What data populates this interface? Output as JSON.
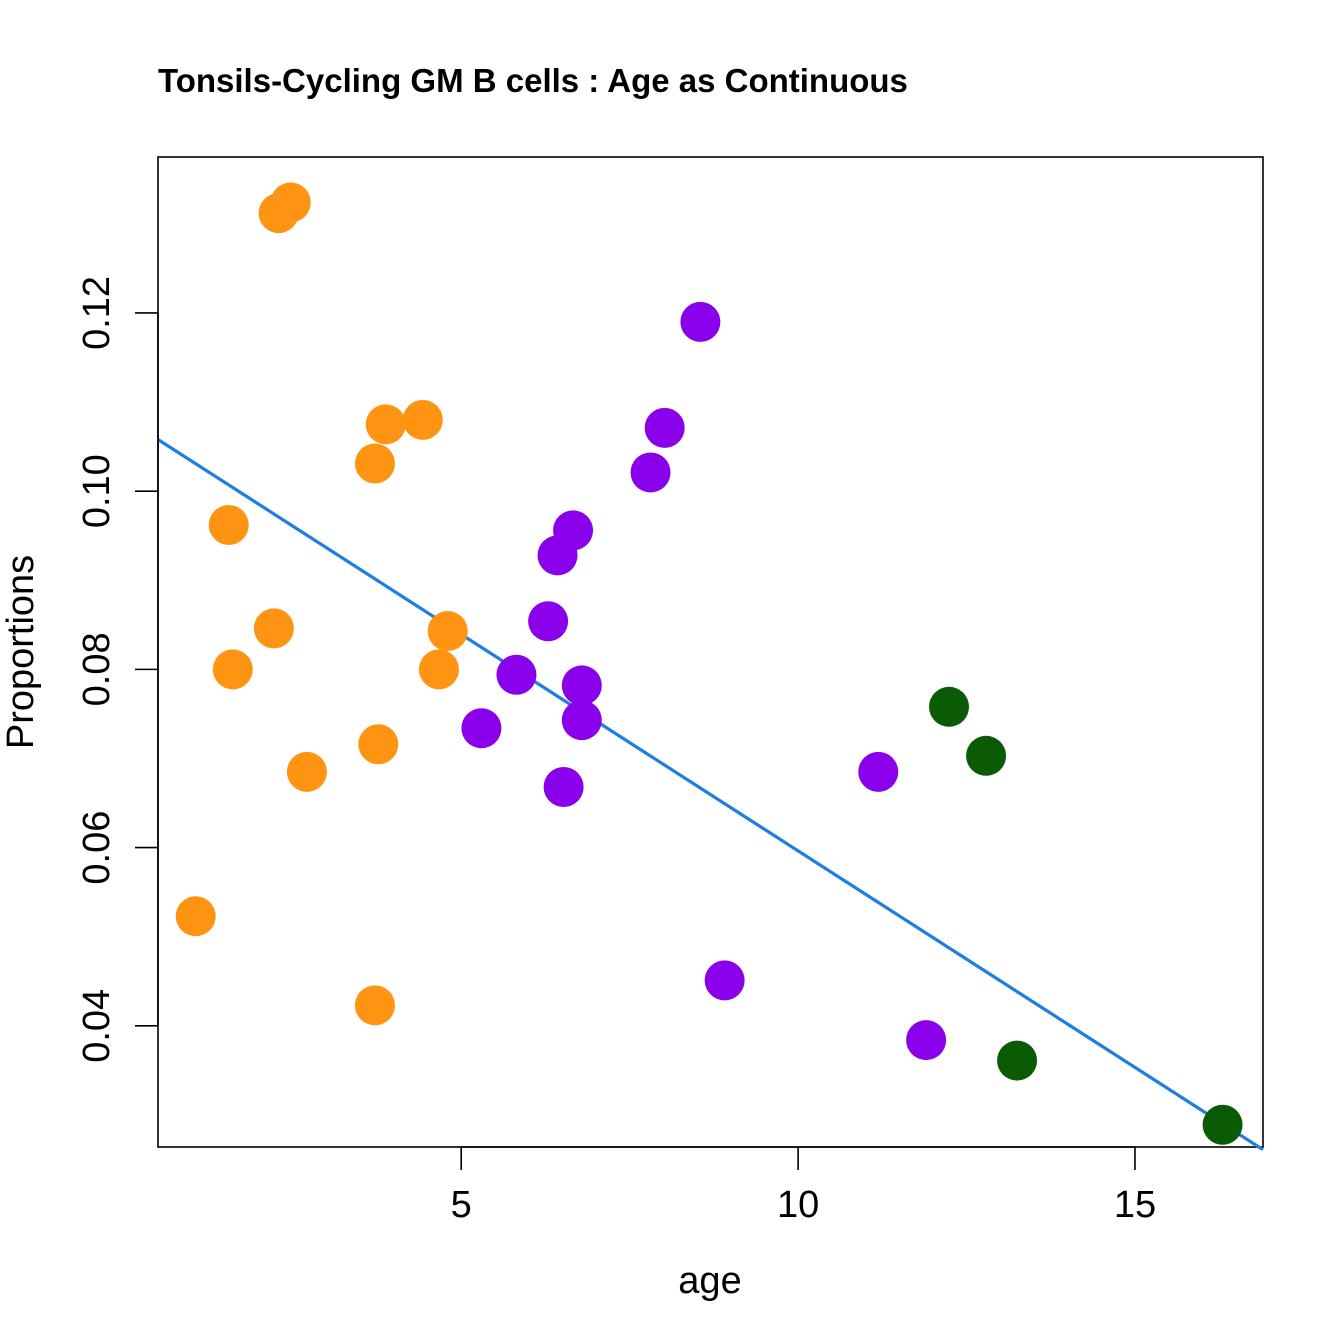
{
  "chart_data": {
    "type": "scatter",
    "title": "Tonsils-Cycling GM B cells : Age as Continuous",
    "xlabel": "age",
    "ylabel": "Proportions",
    "xlim": [
      0.5,
      16.9
    ],
    "ylim": [
      0.0264,
      0.1375
    ],
    "xticks": [
      5,
      10,
      15
    ],
    "xtick_labels": [
      "5",
      "10",
      "15"
    ],
    "yticks": [
      0.04,
      0.06,
      0.08,
      0.1,
      0.12
    ],
    "ytick_labels": [
      "0.04",
      "0.06",
      "0.08",
      "0.10",
      "0.12"
    ],
    "grid": false,
    "series": [
      {
        "name": "orange-group",
        "color": "#FF9412",
        "points": [
          {
            "x": 2.29,
            "y": 0.1312
          },
          {
            "x": 2.47,
            "y": 0.1324
          },
          {
            "x": 3.88,
            "y": 0.1075
          },
          {
            "x": 4.43,
            "y": 0.108
          },
          {
            "x": 3.72,
            "y": 0.1031
          },
          {
            "x": 1.55,
            "y": 0.0962
          },
          {
            "x": 4.8,
            "y": 0.0843
          },
          {
            "x": 2.22,
            "y": 0.0846
          },
          {
            "x": 1.61,
            "y": 0.08
          },
          {
            "x": 4.67,
            "y": 0.08
          },
          {
            "x": 3.77,
            "y": 0.0716
          },
          {
            "x": 2.71,
            "y": 0.0685
          },
          {
            "x": 1.06,
            "y": 0.0523
          },
          {
            "x": 3.72,
            "y": 0.0423
          }
        ]
      },
      {
        "name": "purple-group",
        "color": "#8B00EA",
        "points": [
          {
            "x": 8.55,
            "y": 0.119
          },
          {
            "x": 8.02,
            "y": 0.1071
          },
          {
            "x": 7.81,
            "y": 0.1021
          },
          {
            "x": 6.66,
            "y": 0.0956
          },
          {
            "x": 6.43,
            "y": 0.0928
          },
          {
            "x": 6.29,
            "y": 0.0854
          },
          {
            "x": 5.82,
            "y": 0.0794
          },
          {
            "x": 6.79,
            "y": 0.0782
          },
          {
            "x": 6.79,
            "y": 0.0743
          },
          {
            "x": 5.3,
            "y": 0.0734
          },
          {
            "x": 6.52,
            "y": 0.0668
          },
          {
            "x": 11.19,
            "y": 0.0685
          },
          {
            "x": 8.91,
            "y": 0.0451
          },
          {
            "x": 11.9,
            "y": 0.0384
          }
        ]
      },
      {
        "name": "green-group",
        "color": "#0B5B05",
        "points": [
          {
            "x": 12.24,
            "y": 0.0758
          },
          {
            "x": 12.79,
            "y": 0.0703
          },
          {
            "x": 13.25,
            "y": 0.0361
          },
          {
            "x": 16.3,
            "y": 0.0289
          }
        ]
      }
    ],
    "fit_line": {
      "color": "#1E7FE0",
      "x": [
        0.5,
        16.9
      ],
      "y": [
        0.1058,
        0.0261
      ]
    }
  }
}
